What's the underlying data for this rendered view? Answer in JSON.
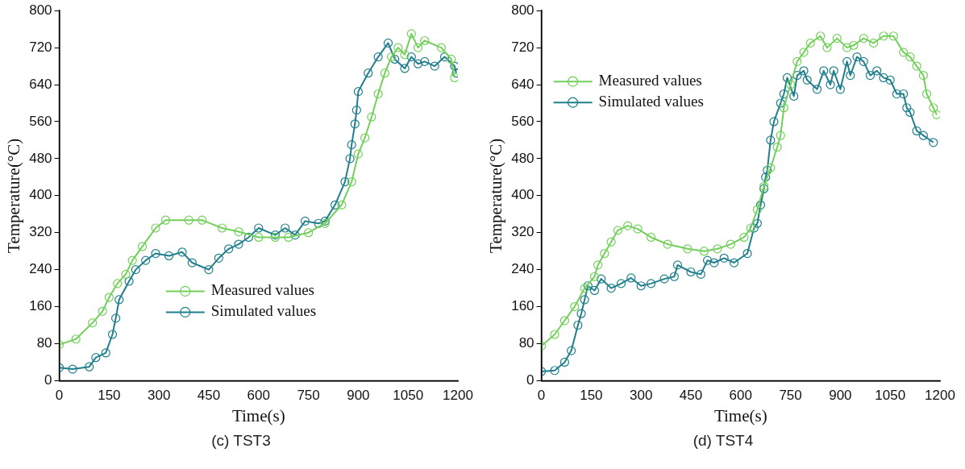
{
  "chart_data": [
    {
      "type": "line",
      "xlabel": "Time(s)",
      "ylabel": "Temperature(°C)",
      "xlim": [
        0,
        1200
      ],
      "ylim": [
        0,
        800
      ],
      "xticks": [
        0,
        150,
        300,
        450,
        600,
        750,
        900,
        1050,
        1200
      ],
      "yticks": [
        0,
        80,
        160,
        240,
        320,
        400,
        480,
        560,
        640,
        720,
        800
      ],
      "grid": false,
      "legend": "bottom",
      "marker": "circle",
      "line_style": "solid",
      "annotations": [
        "(c) TST3"
      ],
      "series": [
        {
          "name": "Measured values",
          "color": "#72d05a",
          "x": [
            0,
            50,
            100,
            130,
            150,
            175,
            200,
            220,
            250,
            290,
            320,
            390,
            430,
            490,
            540,
            600,
            650,
            690,
            750,
            800,
            850,
            880,
            900,
            920,
            940,
            960,
            980,
            1000,
            1020,
            1040,
            1060,
            1080,
            1100,
            1150,
            1180,
            1190
          ],
          "values": [
            78,
            90,
            125,
            150,
            180,
            210,
            230,
            260,
            290,
            330,
            347,
            347,
            347,
            330,
            322,
            310,
            310,
            310,
            320,
            340,
            380,
            430,
            490,
            525,
            570,
            620,
            665,
            700,
            720,
            705,
            750,
            720,
            735,
            720,
            695,
            655
          ]
        },
        {
          "name": "Simulated values",
          "color": "#1f7f8c",
          "x": [
            0,
            40,
            90,
            110,
            140,
            160,
            170,
            180,
            210,
            230,
            260,
            290,
            330,
            370,
            400,
            450,
            480,
            510,
            540,
            570,
            600,
            650,
            680,
            710,
            740,
            780,
            800,
            830,
            860,
            875,
            880,
            890,
            895,
            900,
            930,
            960,
            990,
            1010,
            1040,
            1060,
            1080,
            1100,
            1130,
            1160,
            1190,
            1195
          ],
          "values": [
            28,
            25,
            30,
            50,
            60,
            100,
            135,
            175,
            215,
            240,
            260,
            275,
            270,
            278,
            255,
            240,
            265,
            285,
            295,
            310,
            330,
            315,
            330,
            315,
            345,
            340,
            345,
            380,
            430,
            480,
            510,
            555,
            585,
            625,
            665,
            700,
            730,
            695,
            675,
            700,
            685,
            690,
            680,
            700,
            680,
            665
          ]
        }
      ]
    },
    {
      "type": "line",
      "xlabel": "Time(s)",
      "ylabel": "Temperature(°C)",
      "xlim": [
        0,
        1200
      ],
      "ylim": [
        0,
        800
      ],
      "xticks": [
        0,
        150,
        300,
        450,
        600,
        750,
        900,
        1050,
        1200
      ],
      "yticks": [
        0,
        80,
        160,
        240,
        320,
        400,
        480,
        560,
        640,
        720,
        800
      ],
      "grid": false,
      "legend": "top left",
      "marker": "circle",
      "line_style": "solid",
      "annotations": [
        "(d) TST4"
      ],
      "series": [
        {
          "name": "Measured values",
          "color": "#72d05a",
          "x": [
            0,
            40,
            70,
            100,
            130,
            160,
            170,
            190,
            210,
            230,
            260,
            290,
            330,
            380,
            440,
            490,
            530,
            570,
            610,
            630,
            650,
            670,
            690,
            710,
            720,
            730,
            750,
            770,
            790,
            810,
            840,
            860,
            890,
            920,
            940,
            970,
            1000,
            1030,
            1060,
            1090,
            1110,
            1130,
            1150,
            1160,
            1180,
            1190
          ],
          "values": [
            75,
            100,
            130,
            160,
            200,
            225,
            250,
            275,
            300,
            325,
            335,
            328,
            310,
            295,
            285,
            280,
            285,
            295,
            310,
            330,
            370,
            420,
            460,
            505,
            530,
            590,
            640,
            690,
            710,
            730,
            745,
            720,
            740,
            720,
            725,
            740,
            730,
            745,
            745,
            710,
            700,
            680,
            660,
            620,
            590,
            575
          ]
        },
        {
          "name": "Simulated values",
          "color": "#1f7f8c",
          "x": [
            0,
            40,
            70,
            90,
            110,
            120,
            130,
            140,
            160,
            180,
            210,
            240,
            270,
            300,
            330,
            370,
            400,
            410,
            450,
            480,
            500,
            520,
            550,
            580,
            620,
            640,
            650,
            660,
            670,
            675,
            680,
            690,
            700,
            720,
            730,
            740,
            760,
            770,
            790,
            800,
            830,
            850,
            870,
            880,
            900,
            920,
            930,
            950,
            970,
            990,
            1010,
            1030,
            1050,
            1070,
            1090,
            1100,
            1110,
            1130,
            1150,
            1180
          ],
          "values": [
            20,
            22,
            40,
            65,
            120,
            145,
            175,
            205,
            195,
            220,
            200,
            210,
            222,
            205,
            210,
            220,
            225,
            250,
            235,
            230,
            260,
            255,
            265,
            255,
            275,
            330,
            340,
            380,
            415,
            440,
            455,
            520,
            560,
            600,
            620,
            655,
            615,
            660,
            670,
            650,
            630,
            670,
            640,
            670,
            630,
            690,
            660,
            700,
            690,
            660,
            670,
            655,
            650,
            620,
            620,
            590,
            580,
            540,
            530,
            515
          ]
        }
      ]
    }
  ]
}
